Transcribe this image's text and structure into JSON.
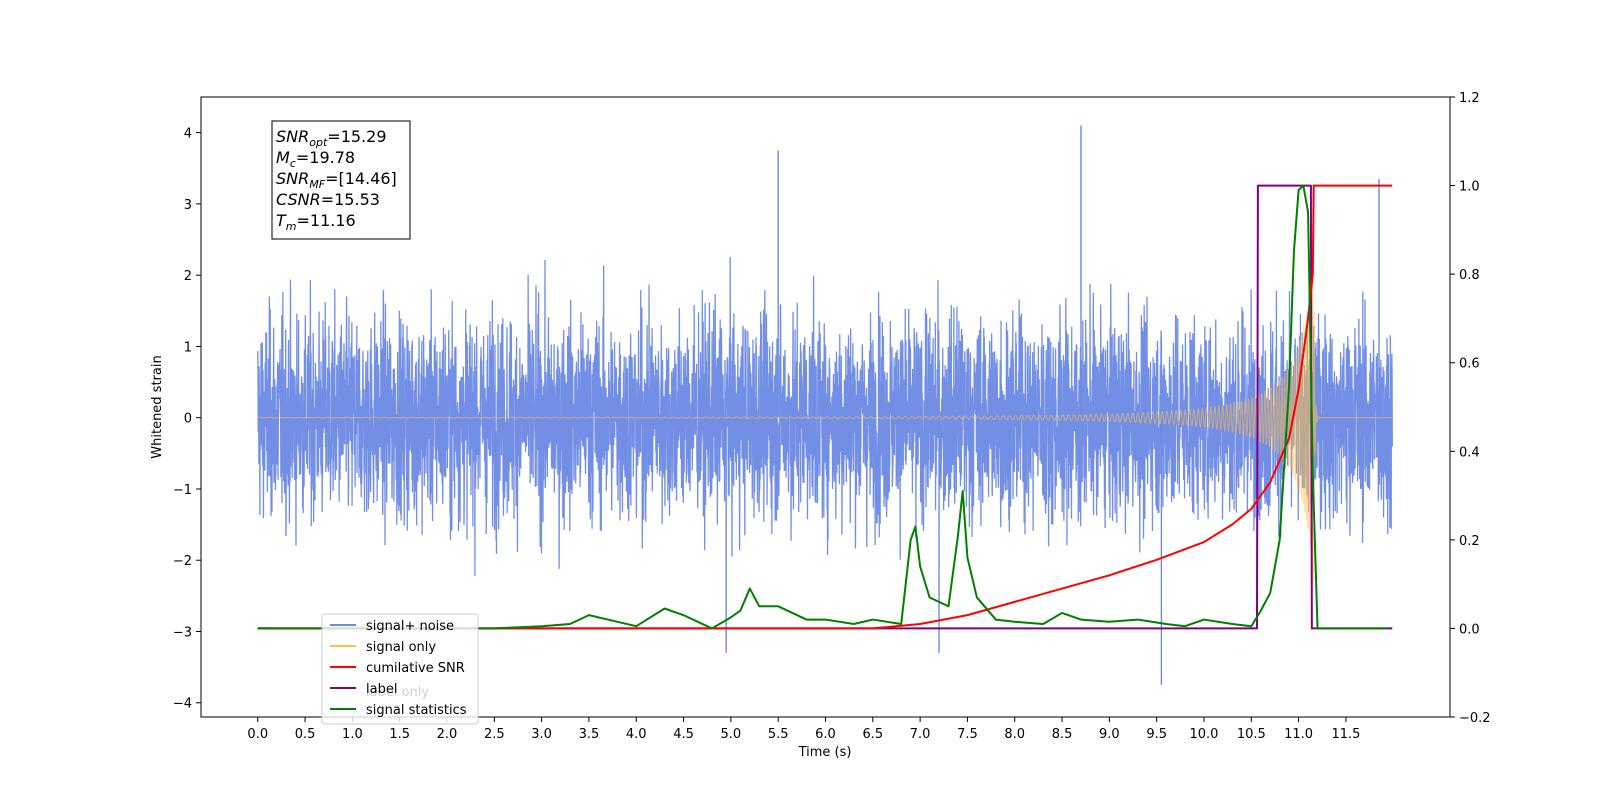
{
  "chart_data": {
    "type": "line",
    "xlabel": "Time (s)",
    "ylabel": "Whitened strain",
    "xlim": [
      -0.6,
      12.6
    ],
    "ylim": [
      -4.2,
      4.5
    ],
    "y2lim": [
      -0.2,
      1.2
    ],
    "x_ticks": [
      "0.0",
      "0.5",
      "1.0",
      "1.5",
      "2.0",
      "2.5",
      "3.0",
      "3.5",
      "4.0",
      "4.5",
      "5.0",
      "5.5",
      "6.0",
      "6.5",
      "7.0",
      "7.5",
      "8.0",
      "8.5",
      "9.0",
      "9.5",
      "10.0",
      "10.5",
      "11.0",
      "11.5"
    ],
    "y_ticks": [
      "−4",
      "−3",
      "−2",
      "−1",
      "0",
      "1",
      "2",
      "3",
      "4"
    ],
    "y2_ticks": [
      "−0.2",
      "0.0",
      "0.2",
      "0.4",
      "0.6",
      "0.8",
      "1.0",
      "1.2"
    ],
    "textbox": {
      "lines": [
        {
          "base": "SNR",
          "sub": "opt",
          "value": "=15.29"
        },
        {
          "base": "M",
          "sub": "c",
          "value": "=19.78"
        },
        {
          "base": "SNR",
          "sub": "MF",
          "value": "=[14.46]"
        },
        {
          "base": "CSNR",
          "sub": "",
          "value": "=15.53"
        },
        {
          "base": "T",
          "sub": "m",
          "value": "=11.16"
        }
      ]
    },
    "legend": {
      "placement": "lower-left",
      "entries": [
        {
          "label": "signal+ noise",
          "color": "#6c89e4"
        },
        {
          "label": "signal only",
          "color": "#ffc04d"
        },
        {
          "label": "cumilative SNR",
          "color": "#ff0000"
        },
        {
          "label": "label",
          "color": "#800080"
        },
        {
          "label": "signal statistics",
          "color": "#008000"
        }
      ],
      "hidden_label_behind": "label only"
    },
    "series": [
      {
        "name": "signal+ noise",
        "axis": "left",
        "color": "#6c89e4",
        "x_range": [
          0.0,
          11.99
        ],
        "envelope_typical": 1.6,
        "notable_peaks": [
          {
            "x": 8.7,
            "y": 4.1
          },
          {
            "x": 5.5,
            "y": 3.75
          },
          {
            "x": 11.85,
            "y": 3.35
          },
          {
            "x": 9.55,
            "y": -3.75
          },
          {
            "x": 7.2,
            "y": -3.3
          },
          {
            "x": 4.95,
            "y": -3.3
          }
        ]
      },
      {
        "name": "signal only",
        "axis": "left",
        "color": "#ffc04d",
        "type": "chirp",
        "x_range": [
          0.0,
          11.99
        ],
        "merger_time": 11.16,
        "peak_amplitude": 2.4
      },
      {
        "name": "cumilative SNR",
        "axis": "right",
        "color": "#ff0000",
        "x": [
          0.0,
          6.5,
          7.0,
          7.5,
          8.0,
          8.5,
          9.0,
          9.5,
          10.0,
          10.3,
          10.5,
          10.7,
          10.9,
          11.0,
          11.1,
          11.15,
          11.16,
          11.99
        ],
        "y": [
          0.0,
          0.0,
          0.01,
          0.03,
          0.06,
          0.09,
          0.12,
          0.155,
          0.195,
          0.235,
          0.27,
          0.33,
          0.43,
          0.54,
          0.7,
          0.8,
          1.0,
          1.0
        ]
      },
      {
        "name": "label",
        "axis": "right",
        "color": "#800080",
        "x": [
          0.0,
          10.56,
          10.57,
          11.13,
          11.14,
          11.99
        ],
        "y": [
          0.0,
          0.0,
          1.0,
          1.0,
          0.0,
          0.0
        ]
      },
      {
        "name": "signal statistics",
        "axis": "right",
        "color": "#008000",
        "x": [
          0.0,
          2.5,
          3.0,
          3.3,
          3.5,
          3.7,
          4.0,
          4.3,
          4.5,
          4.8,
          5.0,
          5.1,
          5.2,
          5.3,
          5.5,
          5.8,
          6.0,
          6.3,
          6.5,
          6.8,
          6.9,
          6.95,
          7.0,
          7.1,
          7.2,
          7.3,
          7.4,
          7.45,
          7.5,
          7.6,
          7.8,
          8.0,
          8.3,
          8.5,
          8.7,
          9.0,
          9.3,
          9.6,
          9.8,
          10.0,
          10.3,
          10.5,
          10.6,
          10.7,
          10.8,
          10.9,
          10.95,
          11.0,
          11.05,
          11.1,
          11.15,
          11.2,
          11.3,
          11.93
        ],
        "y": [
          0.0,
          0.0,
          0.005,
          0.01,
          0.03,
          0.02,
          0.005,
          0.045,
          0.03,
          0.0,
          0.025,
          0.04,
          0.09,
          0.05,
          0.05,
          0.02,
          0.02,
          0.01,
          0.02,
          0.01,
          0.2,
          0.23,
          0.14,
          0.07,
          0.06,
          0.05,
          0.21,
          0.31,
          0.16,
          0.07,
          0.02,
          0.015,
          0.01,
          0.035,
          0.02,
          0.015,
          0.02,
          0.01,
          0.005,
          0.02,
          0.01,
          0.005,
          0.04,
          0.08,
          0.2,
          0.55,
          0.85,
          0.99,
          1.0,
          0.94,
          0.35,
          0.0,
          0.0,
          0.0
        ]
      }
    ]
  }
}
